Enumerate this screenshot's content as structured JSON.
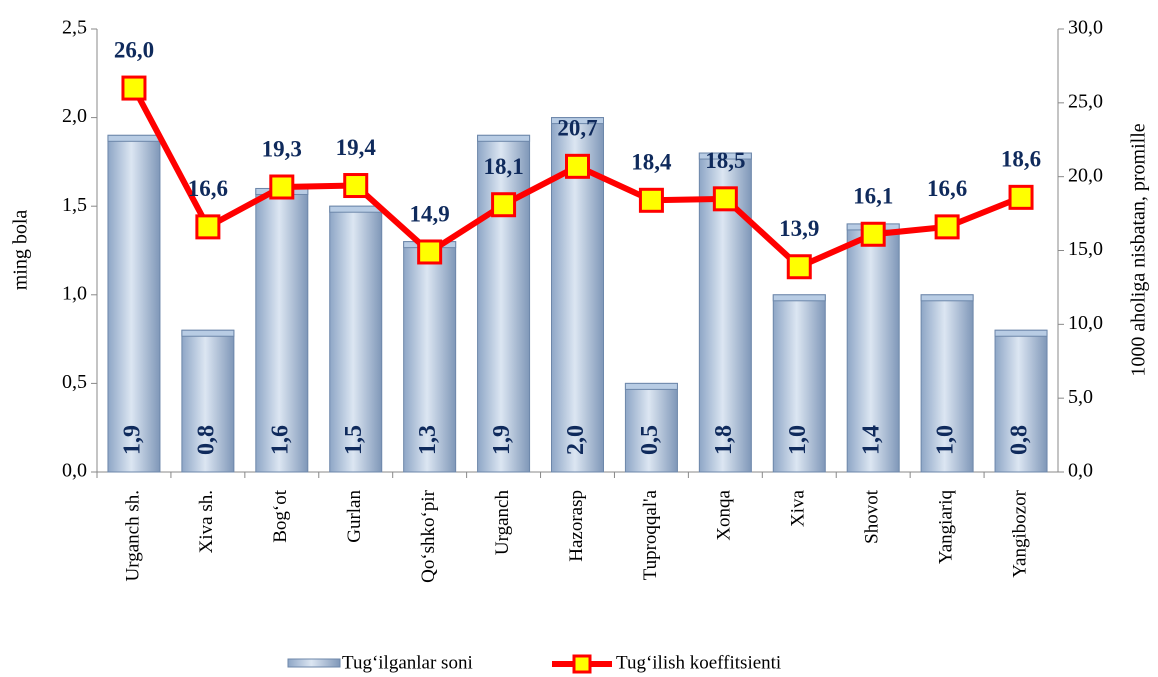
{
  "chart_data": {
    "type": "combo",
    "ylabel": "ming bola",
    "y2label": "1000 aholiga nisbatan, promille",
    "categories": [
      "Urganch sh.",
      "Xiva sh.",
      "Bog‘ot",
      "Gurlan",
      "Qo‘shko‘pir",
      "Urganch",
      "Hazorasp",
      "Tuproqqal'a",
      "Xonqa",
      "Xiva",
      "Shovot",
      "Yangiariq",
      "Yangibozor"
    ],
    "series": [
      {
        "name": "Tug‘ilganlar soni",
        "type": "bar",
        "color": "#b8cce4",
        "values": [
          1.9,
          0.8,
          1.6,
          1.5,
          1.3,
          1.9,
          2.0,
          0.5,
          1.8,
          1.0,
          1.4,
          1.0,
          0.8
        ],
        "value_labels": [
          "1,9",
          "0,8",
          "1,6",
          "1,5",
          "1,3",
          "1,9",
          "2,0",
          "0,5",
          "1,8",
          "1,0",
          "1,4",
          "1,0",
          "0,8"
        ]
      },
      {
        "name": "Tug‘ilish koeffitsienti",
        "type": "line",
        "axis": "y2",
        "color": "#ff0000",
        "marker_color": "#ffff00",
        "values": [
          26.0,
          16.6,
          19.3,
          19.4,
          14.9,
          18.1,
          20.7,
          18.4,
          18.5,
          13.9,
          16.1,
          16.6,
          18.6
        ],
        "value_labels": [
          "26,0",
          "16,6",
          "19,3",
          "19,4",
          "14,9",
          "18,1",
          "20,7",
          "18,4",
          "18,5",
          "13,9",
          "16,1",
          "16,6",
          "18,6"
        ]
      }
    ],
    "ylim": [
      0,
      2.5
    ],
    "yticks": [
      {
        "value": 0,
        "label": "0,0"
      },
      {
        "value": 0.5,
        "label": "0,5"
      },
      {
        "value": 1,
        "label": "1,0"
      },
      {
        "value": 1.5,
        "label": "1,5"
      },
      {
        "value": 2,
        "label": "2,0"
      },
      {
        "value": 2.5,
        "label": "2,5"
      }
    ],
    "y2lim": [
      0,
      30
    ],
    "y2ticks": [
      {
        "value": 0,
        "label": "0,0"
      },
      {
        "value": 5,
        "label": "5,0"
      },
      {
        "value": 10,
        "label": "10,0"
      },
      {
        "value": 15,
        "label": "15,0"
      },
      {
        "value": 20,
        "label": "20,0"
      },
      {
        "value": 25,
        "label": "25,0"
      },
      {
        "value": 30,
        "label": "30,0"
      }
    ],
    "label_color": "#0f2a5c"
  }
}
